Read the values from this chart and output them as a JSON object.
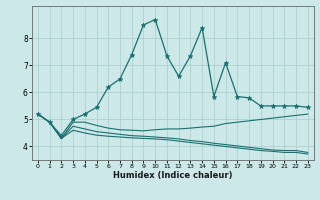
{
  "xlabel": "Humidex (Indice chaleur)",
  "background_color": "#cce8e8",
  "grid_color": "#aacccc",
  "line_color": "#1a7070",
  "xlim": [
    -0.5,
    23.5
  ],
  "ylim": [
    3.5,
    9.2
  ],
  "yticks": [
    4,
    5,
    6,
    7,
    8
  ],
  "xticks": [
    0,
    1,
    2,
    3,
    4,
    5,
    6,
    7,
    8,
    9,
    10,
    11,
    12,
    13,
    14,
    15,
    16,
    17,
    18,
    19,
    20,
    21,
    22,
    23
  ],
  "s1_x": [
    0,
    1,
    2,
    3,
    4,
    5,
    6,
    7,
    8,
    9,
    10,
    11,
    12,
    13,
    14,
    15,
    16,
    17,
    18,
    19,
    20,
    21,
    22,
    23
  ],
  "s1_y": [
    5.2,
    4.9,
    4.4,
    5.0,
    5.2,
    5.45,
    6.2,
    6.5,
    7.4,
    8.5,
    8.7,
    7.35,
    6.6,
    7.35,
    8.4,
    5.85,
    7.1,
    5.85,
    5.8,
    5.5,
    5.5,
    5.5,
    5.5,
    5.45
  ],
  "s2_x": [
    0,
    1,
    2,
    3,
    4,
    5,
    6,
    7,
    8,
    9,
    10,
    11,
    12,
    13,
    14,
    15,
    16,
    17,
    18,
    19,
    20,
    21,
    22,
    23
  ],
  "s2_y": [
    5.2,
    4.9,
    4.3,
    4.9,
    4.9,
    4.78,
    4.68,
    4.62,
    4.6,
    4.58,
    4.62,
    4.65,
    4.65,
    4.68,
    4.72,
    4.75,
    4.85,
    4.9,
    4.95,
    5.0,
    5.05,
    5.1,
    5.15,
    5.2
  ],
  "s3_x": [
    0,
    1,
    2,
    3,
    4,
    5,
    6,
    7,
    8,
    9,
    10,
    11,
    12,
    13,
    14,
    15,
    16,
    17,
    18,
    19,
    20,
    21,
    22,
    23
  ],
  "s3_y": [
    5.2,
    4.9,
    4.3,
    4.75,
    4.65,
    4.55,
    4.5,
    4.45,
    4.4,
    4.38,
    4.35,
    4.32,
    4.28,
    4.22,
    4.18,
    4.12,
    4.07,
    4.02,
    3.97,
    3.92,
    3.87,
    3.85,
    3.85,
    3.78
  ],
  "s4_x": [
    0,
    1,
    2,
    3,
    4,
    5,
    6,
    7,
    8,
    9,
    10,
    11,
    12,
    13,
    14,
    15,
    16,
    17,
    18,
    19,
    20,
    21,
    22,
    23
  ],
  "s4_y": [
    5.2,
    4.9,
    4.3,
    4.6,
    4.5,
    4.42,
    4.38,
    4.35,
    4.32,
    4.3,
    4.28,
    4.25,
    4.2,
    4.15,
    4.1,
    4.05,
    4.0,
    3.95,
    3.9,
    3.85,
    3.82,
    3.78,
    3.78,
    3.72
  ]
}
